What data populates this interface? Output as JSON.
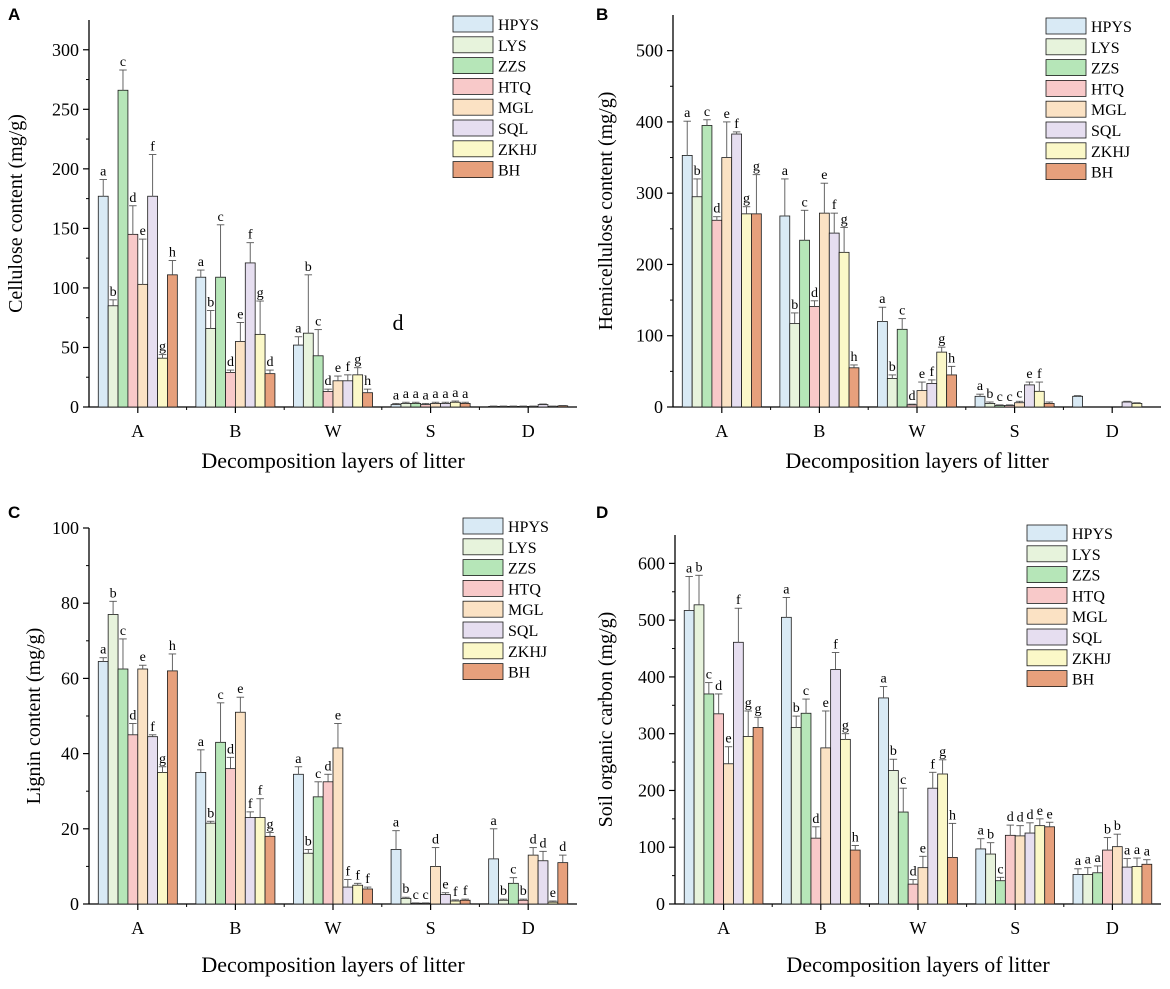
{
  "figure": {
    "colors": [
      "#d9eaf5",
      "#e7f3dc",
      "#b6e6b8",
      "#f8c9c9",
      "#fbe2c4",
      "#e6def0",
      "#fbf8c8",
      "#e7a07c"
    ]
  },
  "chart_data": [
    {
      "panel": "A",
      "type": "bar",
      "title": "",
      "xlabel": "Decomposition layers of litter",
      "ylabel": "Cellulose content (mg/g)",
      "ylim": [
        0,
        325
      ],
      "yticks": [
        0,
        50,
        100,
        150,
        200,
        250,
        300
      ],
      "categories": [
        "A",
        "B",
        "W",
        "S",
        "D"
      ],
      "legend": [
        "HPYS",
        "LYS",
        "ZZS",
        "HTQ",
        "MGL",
        "SQL",
        "ZKHJ",
        "BH"
      ],
      "series": [
        {
          "name": "HPYS",
          "values": [
            177,
            109,
            52,
            2,
            0.5
          ],
          "errors": [
            14,
            6,
            7,
            1,
            0.3
          ],
          "labels": [
            "a",
            "a",
            "a",
            "a",
            ""
          ]
        },
        {
          "name": "LYS",
          "values": [
            85,
            66,
            62,
            3,
            0.5
          ],
          "errors": [
            5,
            15,
            49,
            1,
            0.3
          ],
          "labels": [
            "b",
            "b",
            "b",
            "a",
            ""
          ]
        },
        {
          "name": "ZZS",
          "values": [
            266,
            109,
            43,
            3,
            0.5
          ],
          "errors": [
            17,
            44,
            22,
            1,
            0.3
          ],
          "labels": [
            "c",
            "c",
            "c",
            "a",
            ""
          ]
        },
        {
          "name": "HTQ",
          "values": [
            145,
            29,
            13,
            2,
            0.5
          ],
          "errors": [
            24,
            2,
            2,
            1,
            0.3
          ],
          "labels": [
            "d",
            "d",
            "d",
            "a",
            ""
          ]
        },
        {
          "name": "MGL",
          "values": [
            103,
            55,
            22,
            3,
            0.5
          ],
          "errors": [
            38,
            16,
            4,
            1,
            0.3
          ],
          "labels": [
            "e",
            "e",
            "e",
            "a",
            ""
          ]
        },
        {
          "name": "SQL",
          "values": [
            177,
            121,
            22,
            3,
            2
          ],
          "errors": [
            35,
            17,
            5,
            1,
            0.5
          ],
          "labels": [
            "f",
            "f",
            "f",
            "a",
            ""
          ]
        },
        {
          "name": "ZKHJ",
          "values": [
            41,
            61,
            27,
            4,
            0.5
          ],
          "errors": [
            3,
            28,
            6,
            1,
            0.3
          ],
          "labels": [
            "g",
            "g",
            "g",
            "a",
            ""
          ]
        },
        {
          "name": "BH",
          "values": [
            111,
            28,
            12,
            3,
            1
          ],
          "errors": [
            12,
            3,
            3,
            1,
            0.3
          ],
          "labels": [
            "h",
            "d",
            "h",
            "a",
            ""
          ]
        }
      ],
      "annotations": [
        "d"
      ]
    },
    {
      "panel": "B",
      "type": "bar",
      "title": "",
      "xlabel": "Decomposition layers of litter",
      "ylabel": "Hemicellulose content (mg/g)",
      "ylim": [
        0,
        550
      ],
      "yticks": [
        0,
        100,
        200,
        300,
        400,
        500
      ],
      "categories": [
        "A",
        "B",
        "W",
        "S",
        "D"
      ],
      "legend": [
        "HPYS",
        "LYS",
        "ZZS",
        "HTQ",
        "MGL",
        "SQL",
        "ZKHJ",
        "BH"
      ],
      "series": [
        {
          "name": "HPYS",
          "values": [
            353,
            268,
            120,
            15,
            15
          ],
          "errors": [
            48,
            52,
            20,
            3,
            1
          ],
          "labels": [
            "a",
            "a",
            "a",
            "a",
            ""
          ]
        },
        {
          "name": "LYS",
          "values": [
            295,
            117,
            40,
            5,
            0
          ],
          "errors": [
            25,
            15,
            5,
            2,
            0
          ],
          "labels": [
            "b",
            "b",
            "b",
            "b",
            ""
          ]
        },
        {
          "name": "ZZS",
          "values": [
            395,
            234,
            109,
            2,
            0
          ],
          "errors": [
            8,
            42,
            15,
            1,
            0
          ],
          "labels": [
            "c",
            "c",
            "c",
            "c",
            ""
          ]
        },
        {
          "name": "HTQ",
          "values": [
            262,
            141,
            3,
            2,
            0
          ],
          "errors": [
            5,
            8,
            1,
            1,
            0
          ],
          "labels": [
            "d",
            "d",
            "d",
            "c",
            ""
          ]
        },
        {
          "name": "MGL",
          "values": [
            350,
            272,
            23,
            6,
            0
          ],
          "errors": [
            50,
            42,
            12,
            2,
            0
          ],
          "labels": [
            "e",
            "e",
            "e",
            "c",
            ""
          ]
        },
        {
          "name": "SQL",
          "values": [
            383,
            244,
            33,
            31,
            7
          ],
          "errors": [
            3,
            28,
            5,
            4,
            1
          ],
          "labels": [
            "f",
            "f",
            "f",
            "e",
            ""
          ]
        },
        {
          "name": "ZKHJ",
          "values": [
            271,
            217,
            77,
            22,
            5
          ],
          "errors": [
            10,
            35,
            7,
            13,
            1
          ],
          "labels": [
            "g",
            "g",
            "g",
            "f",
            ""
          ]
        },
        {
          "name": "BH",
          "values": [
            271,
            55,
            45,
            5,
            0
          ],
          "errors": [
            55,
            4,
            12,
            2,
            0
          ],
          "labels": [
            "g",
            "h",
            "h",
            "",
            ""
          ]
        }
      ]
    },
    {
      "panel": "C",
      "type": "bar",
      "title": "",
      "xlabel": "Decomposition layers of litter",
      "ylabel": "Lignin content (mg/g)",
      "ylim": [
        0,
        100
      ],
      "yticks": [
        0,
        20,
        40,
        60,
        80,
        100
      ],
      "categories": [
        "A",
        "B",
        "W",
        "S",
        "D"
      ],
      "legend": [
        "HPYS",
        "LYS",
        "ZZS",
        "HTQ",
        "MGL",
        "SQL",
        "ZKHJ",
        "BH"
      ],
      "series": [
        {
          "name": "HPYS",
          "values": [
            64.5,
            35,
            34.5,
            14.5,
            12
          ],
          "errors": [
            1,
            6,
            2,
            5,
            8
          ],
          "labels": [
            "a",
            "a",
            "a",
            "a",
            "a"
          ]
        },
        {
          "name": "LYS",
          "values": [
            77,
            21.5,
            13.5,
            1.5,
            1
          ],
          "errors": [
            3.5,
            0.5,
            1,
            0.3,
            0.3
          ],
          "labels": [
            "b",
            "b",
            "b",
            "b",
            "b"
          ]
        },
        {
          "name": "ZZS",
          "values": [
            62.5,
            43,
            28.5,
            0.2,
            5.5
          ],
          "errors": [
            8,
            10.5,
            4,
            0.1,
            1.5
          ],
          "labels": [
            "c",
            "c",
            "c",
            "c",
            "c"
          ]
        },
        {
          "name": "HTQ",
          "values": [
            45,
            36,
            32.5,
            0.2,
            1
          ],
          "errors": [
            3,
            3,
            2,
            0.1,
            0.3
          ],
          "labels": [
            "d",
            "d",
            "d",
            "c",
            "b"
          ]
        },
        {
          "name": "MGL",
          "values": [
            62.5,
            51,
            41.5,
            10,
            13
          ],
          "errors": [
            1,
            4,
            6.5,
            5,
            2
          ],
          "labels": [
            "e",
            "e",
            "e",
            "d",
            "d"
          ]
        },
        {
          "name": "SQL",
          "values": [
            44.5,
            23,
            4.5,
            2.5,
            11.5
          ],
          "errors": [
            0.5,
            1.5,
            2,
            0.5,
            2.5
          ],
          "labels": [
            "f",
            "f",
            "f",
            "e",
            "d"
          ]
        },
        {
          "name": "ZKHJ",
          "values": [
            35,
            23,
            5,
            0.8,
            0.5
          ],
          "errors": [
            1.5,
            5,
            0.5,
            0.3,
            0.3
          ],
          "labels": [
            "g",
            "f",
            "f",
            "f",
            "e"
          ]
        },
        {
          "name": "BH",
          "values": [
            62,
            18,
            4,
            1,
            11
          ],
          "errors": [
            4.5,
            1,
            0.5,
            0.3,
            2
          ],
          "labels": [
            "h",
            "g",
            "f",
            "f",
            "d"
          ]
        }
      ]
    },
    {
      "panel": "D",
      "type": "bar",
      "title": "",
      "xlabel": "Decomposition layers of litter",
      "ylabel": "Soil organic carbon (mg/g)",
      "ylim": [
        0,
        650
      ],
      "yticks": [
        0,
        100,
        200,
        300,
        400,
        500,
        600
      ],
      "categories": [
        "A",
        "B",
        "W",
        "S",
        "D"
      ],
      "legend": [
        "HPYS",
        "LYS",
        "ZZS",
        "HTQ",
        "MGL",
        "SQL",
        "ZKHJ",
        "BH"
      ],
      "series": [
        {
          "name": "HPYS",
          "values": [
            517,
            505,
            363,
            97,
            52
          ],
          "errors": [
            60,
            35,
            20,
            18,
            10
          ],
          "labels": [
            "a",
            "a",
            "a",
            "a",
            "a"
          ]
        },
        {
          "name": "LYS",
          "values": [
            527,
            311,
            235,
            88,
            52
          ],
          "errors": [
            52,
            20,
            20,
            20,
            12
          ],
          "labels": [
            "b",
            "b",
            "b",
            "b",
            "a"
          ]
        },
        {
          "name": "ZZS",
          "values": [
            370,
            336,
            162,
            41,
            55
          ],
          "errors": [
            20,
            25,
            42,
            6,
            12
          ],
          "labels": [
            "c",
            "c",
            "c",
            "c",
            "a"
          ]
        },
        {
          "name": "HTQ",
          "values": [
            335,
            116,
            35,
            121,
            95
          ],
          "errors": [
            35,
            20,
            8,
            18,
            22
          ],
          "labels": [
            "d",
            "d",
            "d",
            "d",
            "b"
          ]
        },
        {
          "name": "MGL",
          "values": [
            247,
            275,
            64,
            120,
            101
          ],
          "errors": [
            30,
            65,
            20,
            18,
            22
          ],
          "labels": [
            "e",
            "e",
            "e",
            "d",
            "b"
          ]
        },
        {
          "name": "SQL",
          "values": [
            461,
            413,
            204,
            125,
            65
          ],
          "errors": [
            60,
            30,
            28,
            18,
            15
          ],
          "labels": [
            "f",
            "f",
            "f",
            "d",
            "a"
          ]
        },
        {
          "name": "ZKHJ",
          "values": [
            295,
            290,
            229,
            138,
            66
          ],
          "errors": [
            45,
            10,
            25,
            12,
            15
          ],
          "labels": [
            "g",
            "g",
            "g",
            "e",
            "a"
          ]
        },
        {
          "name": "BH",
          "values": [
            311,
            95,
            82,
            136,
            70
          ],
          "errors": [
            18,
            8,
            60,
            8,
            8
          ],
          "labels": [
            "g",
            "h",
            "h",
            "e",
            "a"
          ]
        }
      ]
    }
  ]
}
